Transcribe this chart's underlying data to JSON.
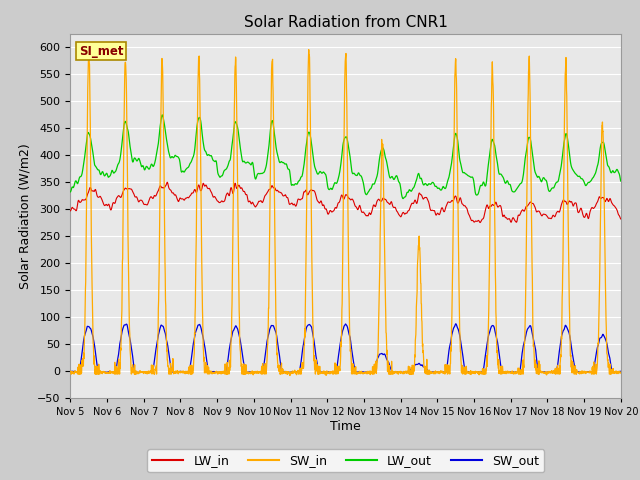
{
  "title": "Solar Radiation from CNR1",
  "xlabel": "Time",
  "ylabel": "Solar Radiation (W/m2)",
  "ylim": [
    -50,
    625
  ],
  "yticks": [
    -50,
    0,
    50,
    100,
    150,
    200,
    250,
    300,
    350,
    400,
    450,
    500,
    550,
    600
  ],
  "n_days": 15,
  "xtick_labels": [
    "Nov 5",
    "Nov 6",
    "Nov 7",
    "Nov 8",
    "Nov 9",
    "Nov 10",
    "Nov 11",
    "Nov 12",
    "Nov 13",
    "Nov 14",
    "Nov 15",
    "Nov 16",
    "Nov 17",
    "Nov 18",
    "Nov 19",
    "Nov 20"
  ],
  "colors": {
    "LW_in": "#dd0000",
    "SW_in": "#ffaa00",
    "LW_out": "#00cc00",
    "SW_out": "#0000dd"
  },
  "fig_facecolor": "#cccccc",
  "ax_facecolor": "#e8e8e8",
  "grid_color": "#ffffff",
  "watermark_text": "SI_met",
  "watermark_bg": "#ffff99",
  "watermark_border": "#aa8800",
  "watermark_text_color": "#880000"
}
